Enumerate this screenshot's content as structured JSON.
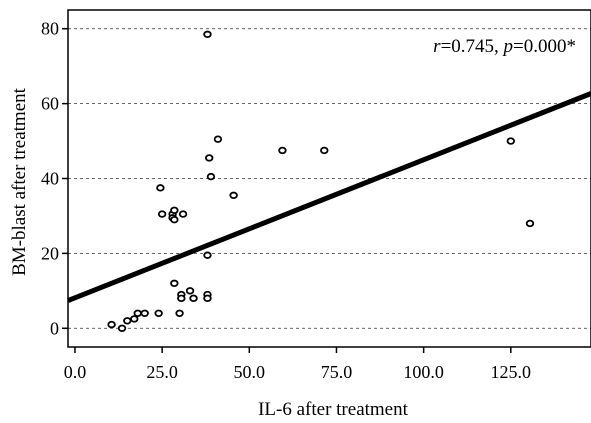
{
  "chart_data": {
    "type": "scatter",
    "xlabel": "IL-6 after treatment",
    "ylabel": "BM-blast after treatment",
    "xlim": [
      -2,
      148
    ],
    "ylim": [
      -5,
      85
    ],
    "x_ticks": [
      0,
      25,
      50,
      75,
      100,
      125
    ],
    "x_tick_labels": [
      "0.0",
      "25.0",
      "50.0",
      "75.0",
      "100.0",
      "125.0"
    ],
    "y_ticks": [
      0,
      20,
      40,
      60,
      80
    ],
    "y_tick_labels": [
      "0",
      "20",
      "40",
      "60",
      "80"
    ],
    "grid": "horizontal dashed",
    "points": [
      {
        "x": 38.0,
        "y": 78.5
      },
      {
        "x": 41.0,
        "y": 50.5
      },
      {
        "x": 59.5,
        "y": 47.5
      },
      {
        "x": 71.5,
        "y": 47.5
      },
      {
        "x": 38.5,
        "y": 45.5
      },
      {
        "x": 39.0,
        "y": 40.5
      },
      {
        "x": 24.5,
        "y": 37.5
      },
      {
        "x": 45.5,
        "y": 35.5
      },
      {
        "x": 25.0,
        "y": 30.5
      },
      {
        "x": 28.0,
        "y": 30.5
      },
      {
        "x": 31.0,
        "y": 30.5
      },
      {
        "x": 28.0,
        "y": 29.5
      },
      {
        "x": 28.5,
        "y": 31.5
      },
      {
        "x": 28.5,
        "y": 29.0
      },
      {
        "x": 38.0,
        "y": 19.5
      },
      {
        "x": 28.5,
        "y": 12.0
      },
      {
        "x": 33.0,
        "y": 10.0
      },
      {
        "x": 30.5,
        "y": 9.0
      },
      {
        "x": 38.0,
        "y": 9.0
      },
      {
        "x": 30.5,
        "y": 8.0
      },
      {
        "x": 34.0,
        "y": 8.0
      },
      {
        "x": 38.0,
        "y": 8.0
      },
      {
        "x": 30.0,
        "y": 4.0
      },
      {
        "x": 24.0,
        "y": 4.0
      },
      {
        "x": 18.0,
        "y": 4.0
      },
      {
        "x": 20.0,
        "y": 4.0
      },
      {
        "x": 17.0,
        "y": 2.5
      },
      {
        "x": 15.0,
        "y": 2.0
      },
      {
        "x": 10.5,
        "y": 1.0
      },
      {
        "x": 13.5,
        "y": 0.0
      },
      {
        "x": 125.0,
        "y": 50.0
      },
      {
        "x": 130.5,
        "y": 28.0
      }
    ],
    "fit_line": {
      "x": [
        -2,
        148
      ],
      "y": [
        7.4,
        62.7
      ]
    },
    "annotation": {
      "r_symbol": "r",
      "r_text": "=0.745, ",
      "p_symbol": "p",
      "p_text": "=0.000*"
    }
  }
}
